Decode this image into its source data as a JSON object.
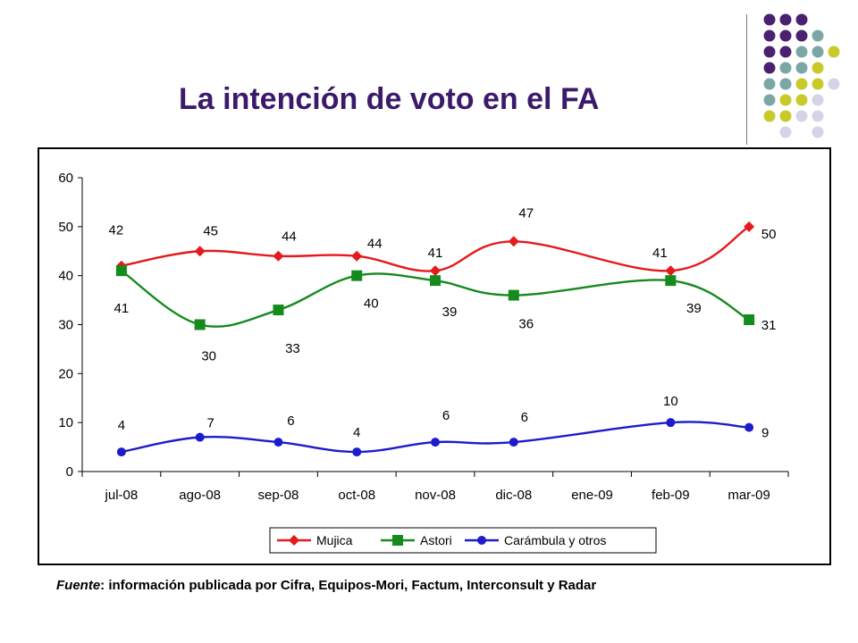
{
  "slide": {
    "title": "La intención de voto en el FA",
    "source_label": "Fuente",
    "source_text": ": información publicada por Cifra, Equipos-Mori, Factum, Interconsult y Radar"
  },
  "decoration": {
    "dot_colors": {
      "purple": "#4a2070",
      "teal": "#7aa7a6",
      "yellow": "#c9c92a",
      "lavender": "#d4d4e8"
    },
    "dot_rows": [
      [
        "",
        "purple",
        "purple",
        "purple",
        "",
        ""
      ],
      [
        "",
        "purple",
        "purple",
        "purple",
        "teal",
        ""
      ],
      [
        "",
        "purple",
        "purple",
        "teal",
        "teal",
        "yellow"
      ],
      [
        "",
        "purple",
        "teal",
        "teal",
        "yellow",
        ""
      ],
      [
        "",
        "teal",
        "teal",
        "yellow",
        "yellow",
        "lavender"
      ],
      [
        "",
        "teal",
        "yellow",
        "yellow",
        "lavender",
        ""
      ],
      [
        "",
        "yellow",
        "yellow",
        "lavender",
        "lavender",
        ""
      ],
      [
        "",
        "",
        "lavender",
        "",
        "lavender",
        ""
      ]
    ]
  },
  "chart_data": {
    "type": "line",
    "categories": [
      "jul-08",
      "ago-08",
      "sep-08",
      "oct-08",
      "nov-08",
      "dic-08",
      "ene-09",
      "feb-09",
      "mar-09"
    ],
    "ylim": [
      0,
      60
    ],
    "yticks": [
      "0",
      "10",
      "20",
      "30",
      "40",
      "50",
      "60"
    ],
    "legend_position": "bottom",
    "series": [
      {
        "name": "Mujica",
        "color": "#e41a1c",
        "marker": "diamond",
        "values": [
          42,
          45,
          44,
          44,
          41,
          47,
          null,
          41,
          50
        ],
        "labels": [
          "42",
          "45",
          "44",
          "44",
          "41",
          "47",
          "",
          "41",
          "50"
        ]
      },
      {
        "name": "Astori",
        "color": "#158a1d",
        "marker": "square",
        "values": [
          41,
          30,
          33,
          40,
          39,
          36,
          null,
          39,
          31
        ],
        "labels": [
          "41",
          "30",
          "33",
          "40",
          "39",
          "36",
          "",
          "39",
          "31"
        ]
      },
      {
        "name": "Carámbula y otros",
        "color": "#1c1ccc",
        "marker": "circle",
        "values": [
          4,
          7,
          6,
          4,
          6,
          6,
          null,
          10,
          9
        ],
        "labels": [
          "4",
          "7",
          "6",
          "4",
          "6",
          "6",
          "",
          "10",
          "9"
        ]
      }
    ]
  }
}
